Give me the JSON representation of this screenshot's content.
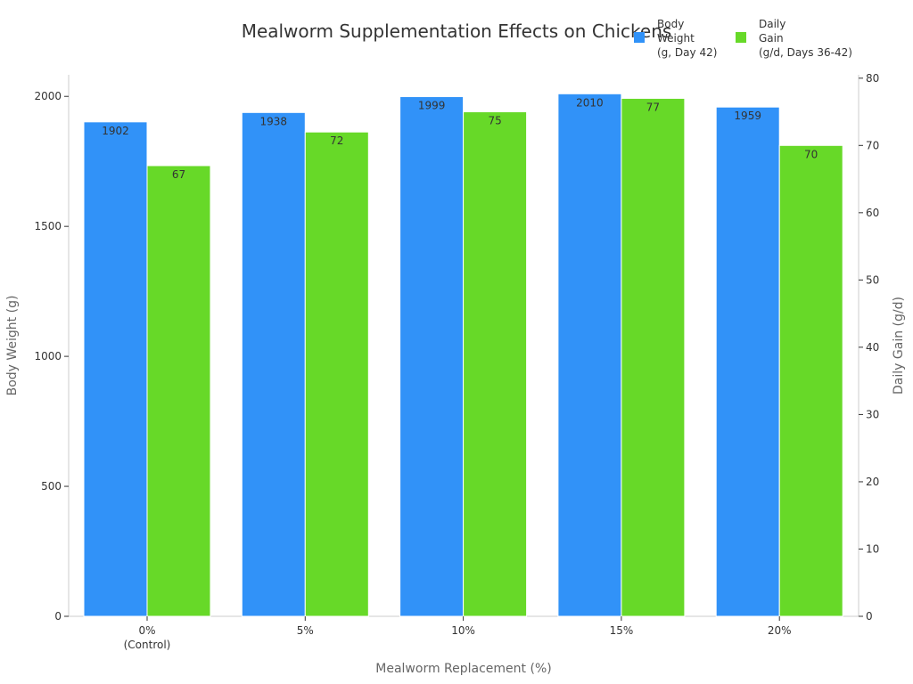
{
  "chart_data": {
    "type": "bar",
    "title": "Mealworm Supplementation Effects on Chickens",
    "xlabel": "Mealworm Replacement (%)",
    "ylabel_left": "Body Weight (g)",
    "ylabel_right": "Daily Gain (g/d)",
    "categories": [
      [
        "0%",
        "(Control)"
      ],
      [
        "5%"
      ],
      [
        "10%"
      ],
      [
        "15%"
      ],
      [
        "20%"
      ]
    ],
    "series": [
      {
        "name": [
          "Body",
          "Weight",
          "(g, Day 42)"
        ],
        "axis": "left",
        "color": "#3192f8",
        "values": [
          1902,
          1938,
          1999,
          2010,
          1959
        ]
      },
      {
        "name": [
          "Daily",
          "Gain",
          "(g/d, Days 36-42)"
        ],
        "axis": "right",
        "color": "#67d928",
        "values": [
          67,
          72,
          75,
          77,
          70
        ]
      }
    ],
    "ylim_left": [
      0,
      2083
    ],
    "ylim_right": [
      0,
      80.5
    ],
    "yticks_left": [
      0,
      500,
      1000,
      1500,
      2000
    ],
    "yticks_right": [
      0,
      10,
      20,
      30,
      40,
      50,
      60,
      70,
      80
    ],
    "legend_position": "top-right"
  },
  "colors": {
    "axis": "#cccccc",
    "text": "#333333",
    "label": "#666666"
  }
}
